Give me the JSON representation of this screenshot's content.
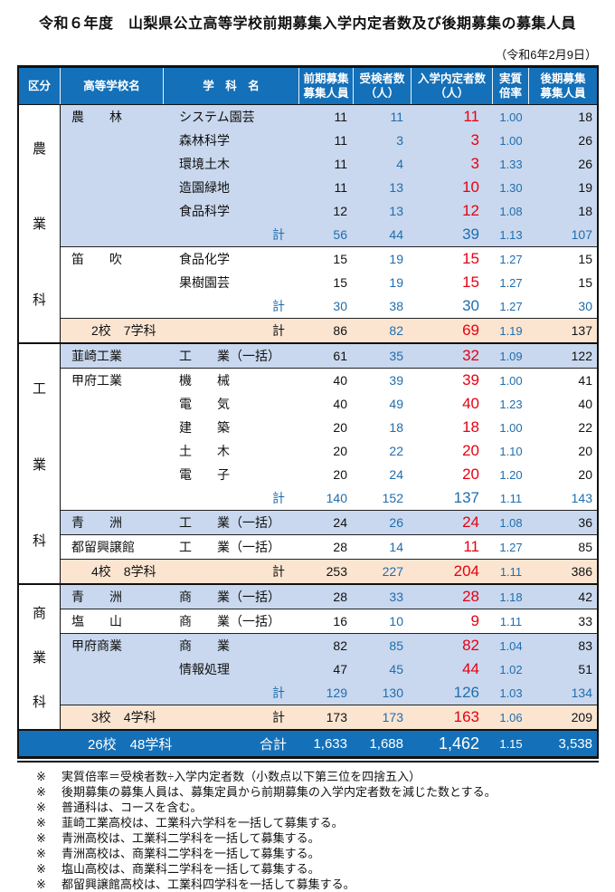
{
  "title": "令和６年度　山梨県公立高等学校前期募集入学内定者数及び後期募集の募集人員",
  "date": "（令和6年2月9日）",
  "colors": {
    "header_blue": "#1470b8",
    "row_blue": "#c9d8ee",
    "peach": "#fbe5d1",
    "red": "#e60012",
    "num_blue": "#1f6dae",
    "ink": "#111111"
  },
  "table": {
    "headers": [
      "区分",
      "高等学校名",
      "学　科　名",
      "前期募集\n募集人員",
      "受検者数\n（人）",
      "入学内定者数\n（人）",
      "実質\n倍率",
      "後期募集\n募集人員"
    ],
    "sections": [
      {
        "category": [
          "農",
          "業",
          "科"
        ],
        "groups": [
          {
            "shade": "blue",
            "rows": [
              {
                "school": "農　　林",
                "dept": "システム園芸",
                "type": "dept",
                "cells": [
                  "11",
                  "11",
                  "11",
                  "1.00",
                  "18"
                ]
              },
              {
                "school": "",
                "dept": "森林科学",
                "type": "dept",
                "cells": [
                  "11",
                  "3",
                  "3",
                  "1.00",
                  "26"
                ]
              },
              {
                "school": "",
                "dept": "環境土木",
                "type": "dept",
                "cells": [
                  "11",
                  "4",
                  "3",
                  "1.33",
                  "26"
                ]
              },
              {
                "school": "",
                "dept": "造園緑地",
                "type": "dept",
                "cells": [
                  "11",
                  "13",
                  "10",
                  "1.30",
                  "19"
                ]
              },
              {
                "school": "",
                "dept": "食品科学",
                "type": "dept",
                "cells": [
                  "12",
                  "13",
                  "12",
                  "1.08",
                  "18"
                ]
              },
              {
                "school": "",
                "dept": "計",
                "type": "kei",
                "cells": [
                  "56",
                  "44",
                  "39",
                  "1.13",
                  "107"
                ]
              }
            ]
          },
          {
            "shade": "white",
            "rows": [
              {
                "school": "笛　　吹",
                "dept": "食品化学",
                "type": "dept",
                "cells": [
                  "15",
                  "19",
                  "15",
                  "1.27",
                  "15"
                ]
              },
              {
                "school": "",
                "dept": "果樹園芸",
                "type": "dept",
                "cells": [
                  "15",
                  "19",
                  "15",
                  "1.27",
                  "15"
                ]
              },
              {
                "school": "",
                "dept": "計",
                "type": "kei",
                "cells": [
                  "30",
                  "38",
                  "30",
                  "1.27",
                  "30"
                ]
              }
            ]
          }
        ],
        "subtotal": {
          "label": "2校　7学科",
          "kei_label": "計",
          "cells": [
            "86",
            "82",
            "69",
            "1.19",
            "137"
          ]
        }
      },
      {
        "category": [
          "工",
          "業",
          "科"
        ],
        "groups": [
          {
            "shade": "blue",
            "rows": [
              {
                "school": "韮崎工業",
                "dept": "工　　業（一括）",
                "type": "dept",
                "cells": [
                  "61",
                  "35",
                  "32",
                  "1.09",
                  "122"
                ]
              }
            ]
          },
          {
            "shade": "white",
            "rows": [
              {
                "school": "甲府工業",
                "dept": "機　　械",
                "type": "dept",
                "cells": [
                  "40",
                  "39",
                  "39",
                  "1.00",
                  "41"
                ]
              },
              {
                "school": "",
                "dept": "電　　気",
                "type": "dept",
                "cells": [
                  "40",
                  "49",
                  "40",
                  "1.23",
                  "40"
                ]
              },
              {
                "school": "",
                "dept": "建　　築",
                "type": "dept",
                "cells": [
                  "20",
                  "18",
                  "18",
                  "1.00",
                  "22"
                ]
              },
              {
                "school": "",
                "dept": "土　　木",
                "type": "dept",
                "cells": [
                  "20",
                  "22",
                  "20",
                  "1.10",
                  "20"
                ]
              },
              {
                "school": "",
                "dept": "電　　子",
                "type": "dept",
                "cells": [
                  "20",
                  "24",
                  "20",
                  "1.20",
                  "20"
                ]
              },
              {
                "school": "",
                "dept": "計",
                "type": "kei",
                "cells": [
                  "140",
                  "152",
                  "137",
                  "1.11",
                  "143"
                ]
              }
            ]
          },
          {
            "shade": "blue",
            "rows": [
              {
                "school": "青　　洲",
                "dept": "工　　業（一括）",
                "type": "dept",
                "cells": [
                  "24",
                  "26",
                  "24",
                  "1.08",
                  "36"
                ]
              }
            ]
          },
          {
            "shade": "white",
            "rows": [
              {
                "school": "都留興譲館",
                "dept": "工　　業（一括）",
                "type": "dept",
                "cells": [
                  "28",
                  "14",
                  "11",
                  "1.27",
                  "85"
                ]
              }
            ]
          }
        ],
        "subtotal": {
          "label": "4校　8学科",
          "kei_label": "計",
          "cells": [
            "253",
            "227",
            "204",
            "1.11",
            "386"
          ]
        }
      },
      {
        "category": [
          "商",
          "業",
          "科"
        ],
        "groups": [
          {
            "shade": "blue",
            "rows": [
              {
                "school": "青　　洲",
                "dept": "商　　業（一括）",
                "type": "dept",
                "cells": [
                  "28",
                  "33",
                  "28",
                  "1.18",
                  "42"
                ]
              }
            ]
          },
          {
            "shade": "white",
            "rows": [
              {
                "school": "塩　　山",
                "dept": "商　　業（一括）",
                "type": "dept",
                "cells": [
                  "16",
                  "10",
                  "9",
                  "1.11",
                  "33"
                ]
              }
            ]
          },
          {
            "shade": "blue",
            "rows": [
              {
                "school": "甲府商業",
                "dept": "商　　業",
                "type": "dept",
                "cells": [
                  "82",
                  "85",
                  "82",
                  "1.04",
                  "83"
                ]
              },
              {
                "school": "",
                "dept": "情報処理",
                "type": "dept",
                "cells": [
                  "47",
                  "45",
                  "44",
                  "1.02",
                  "51"
                ]
              },
              {
                "school": "",
                "dept": "計",
                "type": "kei",
                "cells": [
                  "129",
                  "130",
                  "126",
                  "1.03",
                  "134"
                ]
              }
            ]
          }
        ],
        "subtotal": {
          "label": "3校　4学科",
          "kei_label": "計",
          "cells": [
            "173",
            "173",
            "163",
            "1.06",
            "209"
          ]
        }
      }
    ],
    "total": {
      "label": "26校　48学科",
      "kei_label": "合計",
      "cells": [
        "1,633",
        "1,688",
        "1,462",
        "1.15",
        "3,538"
      ]
    }
  },
  "footnote_mark": "※",
  "footnotes": [
    "実質倍率＝受検者数÷入学内定者数（小数点以下第三位を四捨五入）",
    "後期募集の募集人員は、募集定員から前期募集の入学内定者数を減じた数とする。",
    "普通科は、コースを含む。",
    "韮崎工業高校は、工業科六学科を一括して募集する。",
    "青洲高校は、工業科二学科を一括して募集する。",
    "青洲高校は、商業科二学科を一括して募集する。",
    "塩山高校は、商業科二学科を一括して募集する。",
    "都留興譲館高校は、工業科四学科を一括して募集する。"
  ]
}
